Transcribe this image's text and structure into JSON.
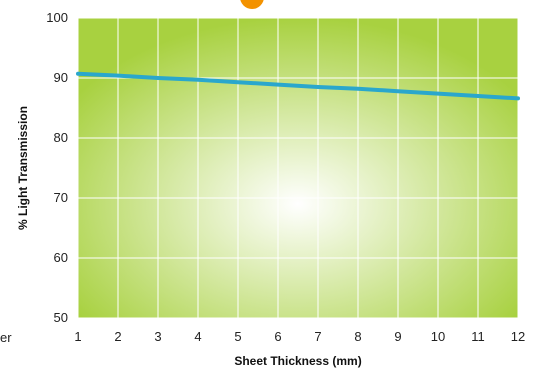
{
  "page": {
    "side_fragment": "er"
  },
  "colors": {
    "plot_center": "#ffffff",
    "plot_edge": "#a8d140",
    "grid": "#ffffff",
    "line": "#2aa7cc",
    "marker": "#f39200"
  },
  "chart_data": {
    "type": "line",
    "title": "",
    "xlabel": "Sheet Thickness (mm)",
    "ylabel": "% Light Transmission",
    "xlim": [
      1,
      12
    ],
    "ylim": [
      50,
      100
    ],
    "x_ticks": [
      1,
      2,
      3,
      4,
      5,
      6,
      7,
      8,
      9,
      10,
      11,
      12
    ],
    "y_ticks": [
      50,
      60,
      70,
      80,
      90,
      100
    ],
    "grid": true,
    "legend": "none",
    "series": [
      {
        "x": [
          1,
          2,
          3,
          4,
          5,
          6,
          7,
          8,
          9,
          10,
          11,
          12
        ],
        "values": [
          90.7,
          90.4,
          90.0,
          89.7,
          89.3,
          88.9,
          88.5,
          88.2,
          87.8,
          87.4,
          87.0,
          86.6
        ]
      }
    ]
  }
}
